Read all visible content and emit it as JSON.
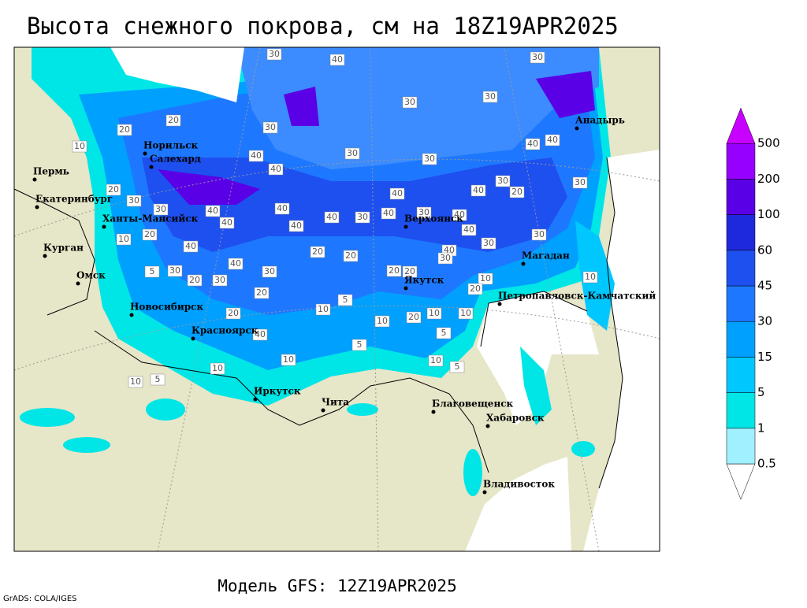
{
  "header": {
    "title": "Высота снежного покрова, см на 18Z19APR2025"
  },
  "map": {
    "cities": [
      "Пермь",
      "Екатеринбург",
      "Ханты-Мансийск",
      "Курган",
      "Омск",
      "Новосибирск",
      "Красноярск",
      "Иркутск",
      "Чита",
      "Благовещенск",
      "Хабаровск",
      "Владивосток",
      "Якутск",
      "Верхоянск",
      "Магадан",
      "Петропавловск-Камчатский",
      "Анадырь",
      "Норильск",
      "Салехард"
    ],
    "contour_labels": [
      30,
      40,
      30,
      30,
      30,
      20,
      30,
      20,
      10,
      30,
      40,
      40,
      30,
      40,
      40,
      30,
      40,
      20,
      30,
      40,
      20,
      30,
      30,
      40,
      40,
      40,
      30,
      40,
      30,
      40,
      40,
      40,
      40,
      30,
      30,
      10,
      20,
      40,
      20,
      20,
      40,
      30,
      40,
      30,
      5,
      30,
      20,
      30,
      20,
      20,
      10,
      20,
      10,
      20,
      5,
      10,
      10,
      10,
      10,
      20,
      20,
      40,
      5,
      5,
      10,
      10,
      10,
      5,
      10,
      5
    ]
  },
  "legend": {
    "levels": [
      0.5,
      1,
      5,
      15,
      30,
      45,
      60,
      100,
      200,
      500
    ],
    "colors": [
      "#ffffff",
      "#a0f0ff",
      "#00e6e6",
      "#00c8ff",
      "#00a0ff",
      "#1e78ff",
      "#1e50f0",
      "#1e28dc",
      "#5a00e6",
      "#9600ff",
      "#c800ff"
    ]
  },
  "footer": {
    "model": "Модель GFS: 12Z19APR2025",
    "credit": "GrADS: COLA/IGES"
  }
}
